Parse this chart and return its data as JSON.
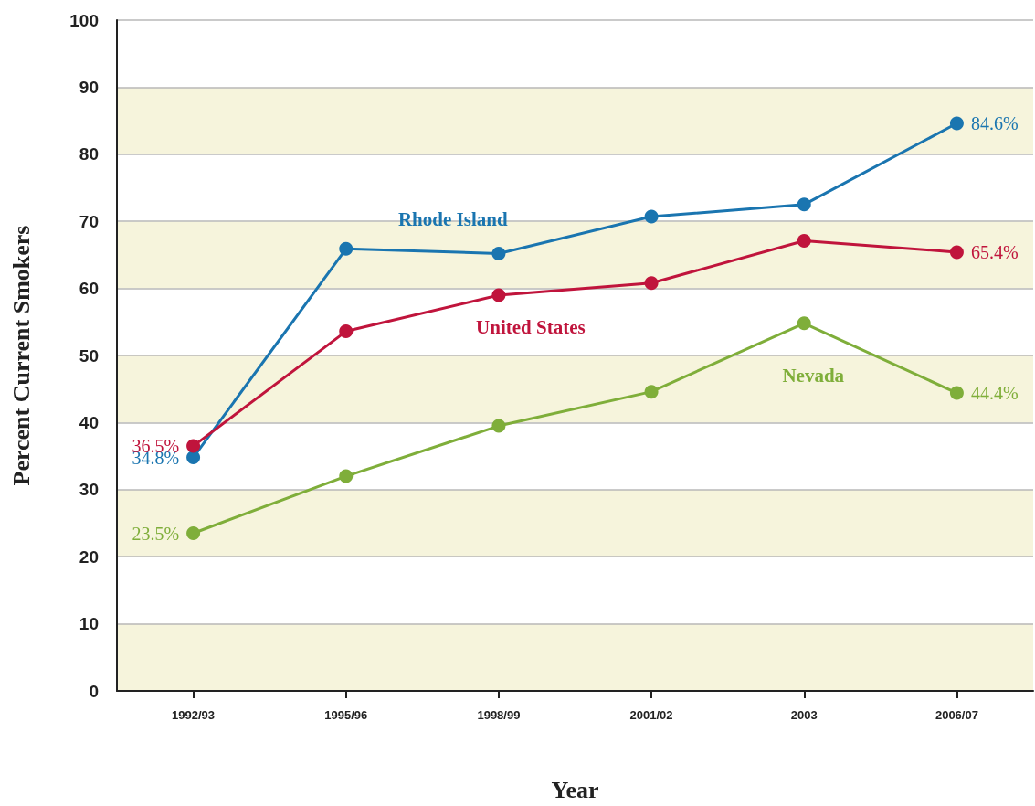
{
  "chart_data": {
    "type": "line",
    "xlabel": "Year",
    "ylabel": "Percent Current Smokers",
    "categories": [
      "1992/93",
      "1995/96",
      "1998/99",
      "2001/02",
      "2003",
      "2006/07"
    ],
    "ylim": [
      0,
      100
    ],
    "yticks": [
      0,
      10,
      20,
      30,
      40,
      50,
      60,
      70,
      80,
      90,
      100
    ],
    "grid": "y",
    "legend": false,
    "marker": "circle",
    "line_style": "solid",
    "series": [
      {
        "name": "Rhode Island",
        "color": "#1a75b0",
        "values": [
          34.8,
          65.9,
          65.2,
          70.7,
          72.5,
          84.6
        ],
        "value_labels": [
          "34.8%",
          null,
          null,
          null,
          null,
          "84.6%"
        ]
      },
      {
        "name": "United States",
        "color": "#c0143c",
        "values": [
          36.5,
          53.6,
          59.0,
          60.8,
          67.1,
          65.4
        ],
        "value_labels": [
          "36.5%",
          null,
          null,
          null,
          null,
          "65.4%"
        ]
      },
      {
        "name": "Nevada",
        "color": "#7fae3a",
        "values": [
          23.5,
          32.0,
          39.5,
          44.6,
          54.8,
          44.4
        ],
        "value_labels": [
          "23.5%",
          null,
          null,
          null,
          null,
          "44.4%"
        ]
      }
    ]
  }
}
